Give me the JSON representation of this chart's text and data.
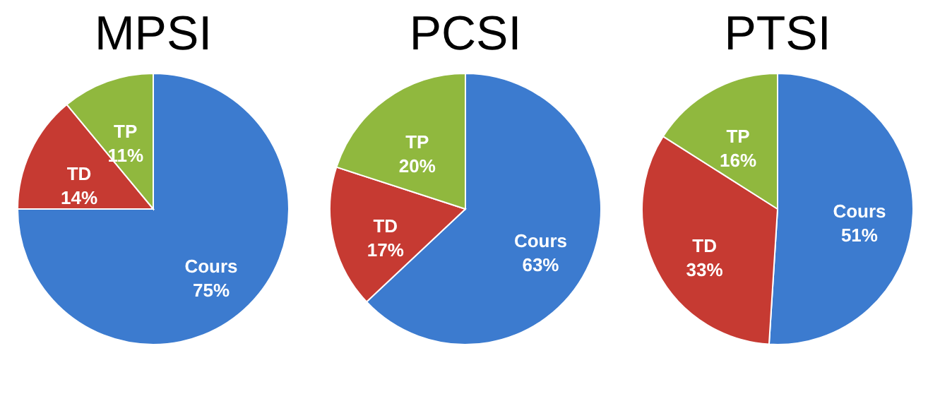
{
  "chart_data": [
    {
      "type": "pie",
      "title": "MPSI",
      "categories": [
        "Cours",
        "TD",
        "TP"
      ],
      "values": [
        75,
        14,
        11
      ],
      "colors": [
        "#3c7bcf",
        "#c63a32",
        "#90b83e"
      ],
      "value_labels": [
        "75%",
        "14%",
        "11%"
      ]
    },
    {
      "type": "pie",
      "title": "PCSI",
      "categories": [
        "Cours",
        "TD",
        "TP"
      ],
      "values": [
        63,
        17,
        20
      ],
      "colors": [
        "#3c7bcf",
        "#c63a32",
        "#90b83e"
      ],
      "value_labels": [
        "63%",
        "17%",
        "20%"
      ]
    },
    {
      "type": "pie",
      "title": "PTSI",
      "categories": [
        "Cours",
        "TD",
        "TP"
      ],
      "values": [
        51,
        33,
        16
      ],
      "colors": [
        "#3c7bcf",
        "#c63a32",
        "#90b83e"
      ],
      "value_labels": [
        "51%",
        "33%",
        "16%"
      ]
    }
  ]
}
